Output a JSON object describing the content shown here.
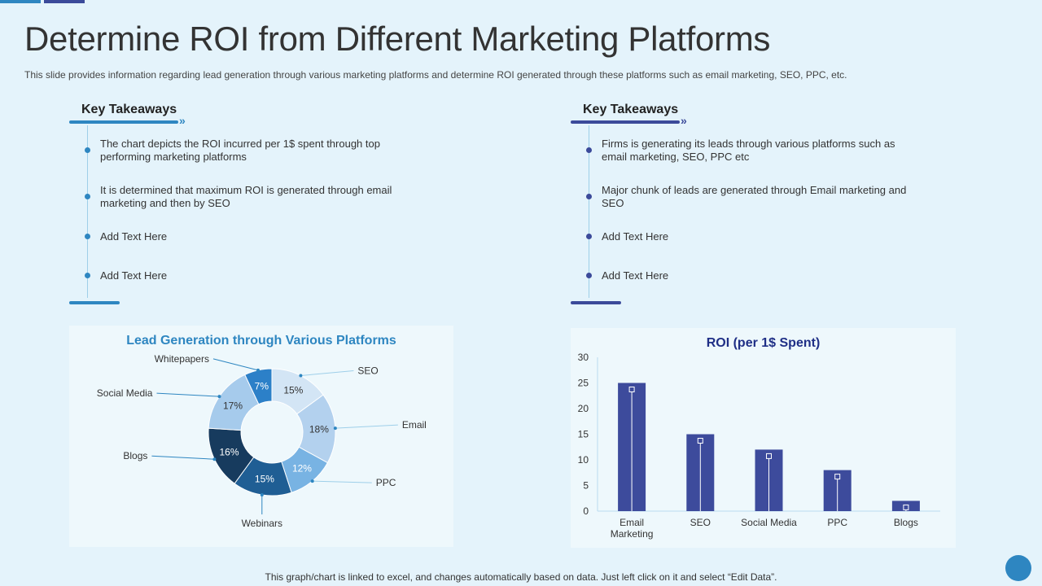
{
  "slide": {
    "title": "Determine ROI from Different Marketing Platforms",
    "subtitle": "This slide provides information regarding lead generation through various marketing platforms and determine ROI generated through these platforms such as email marketing, SEO, PPC, etc.",
    "footer": "This graph/chart is linked to excel,  and changes automatically based on data. Just left click on it and select “Edit Data”."
  },
  "takeaways_left": {
    "heading": "Key Takeaways",
    "chevron": "»",
    "items": [
      "The chart depicts the ROI incurred per 1$ spent through top performing marketing platforms",
      "It is determined that maximum ROI is generated through email marketing and then by SEO",
      "Add Text Here",
      "Add Text Here"
    ]
  },
  "takeaways_right": {
    "heading": "Key Takeaways",
    "chevron": "»",
    "items": [
      "Firms is generating its leads through various platforms such as email marketing, SEO, PPC etc",
      "Major chunk of leads are generated through Email marketing and SEO",
      "Add Text Here",
      "Add Text Here"
    ]
  },
  "colors": {
    "accent_blue": "#2e86c1",
    "accent_navy": "#3b4a9a",
    "bar_fill": "#3d4b9c"
  },
  "chart_data": [
    {
      "type": "pie",
      "variant": "donut",
      "title": "Lead Generation through Various  Platforms",
      "categories": [
        "SEO",
        "Email",
        "PPC",
        "Webinars",
        "Blogs",
        "Social Media",
        "Whitepapers"
      ],
      "values": [
        15,
        18,
        12,
        15,
        16,
        17,
        7
      ],
      "value_labels": [
        "15%",
        "18%",
        "12%",
        "15%",
        "16%",
        "17%",
        "7%"
      ],
      "colors": [
        "#d3e5f5",
        "#b3d1ee",
        "#78b3e3",
        "#1f5e94",
        "#173b5e",
        "#a6cbec",
        "#2c80c8"
      ],
      "label_colors": [
        "#333333",
        "#333333",
        "#ffffff",
        "#ffffff",
        "#ffffff",
        "#333333",
        "#ffffff"
      ]
    },
    {
      "type": "bar",
      "title": "ROI (per 1$ Spent)",
      "categories": [
        "Email Marketing",
        "SEO",
        "Social Media",
        "PPC",
        "Blogs"
      ],
      "category_lines": [
        [
          "Email",
          "Marketing"
        ],
        [
          "SEO"
        ],
        [
          "Social Media"
        ],
        [
          "PPC"
        ],
        [
          "Blogs"
        ]
      ],
      "values": [
        25,
        15,
        12,
        8,
        2
      ],
      "ylim": [
        0,
        30
      ],
      "yticks": [
        0,
        5,
        10,
        15,
        20,
        25,
        30
      ],
      "xlabel": "",
      "ylabel": ""
    }
  ]
}
